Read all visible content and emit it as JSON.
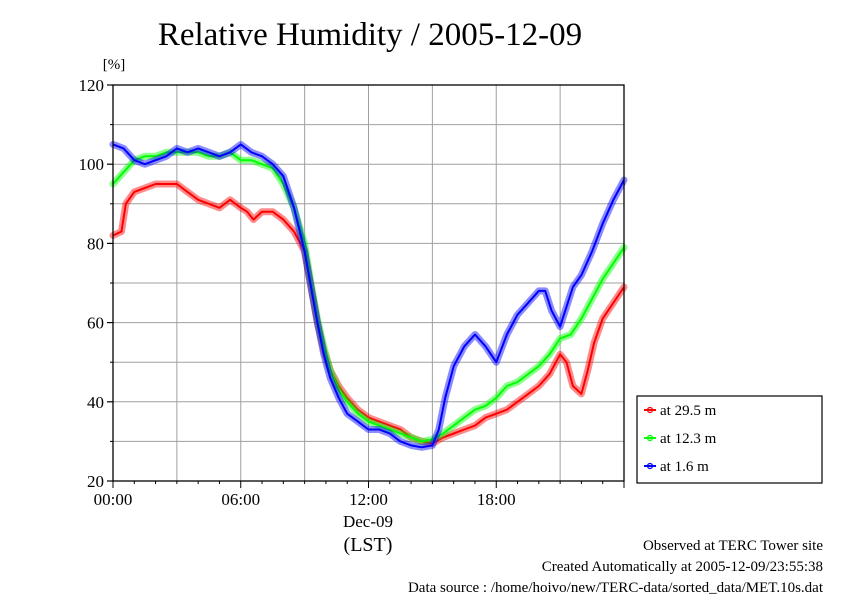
{
  "chart_data": {
    "type": "line",
    "title": "Relative Humidity / 2005-12-09",
    "ylabel": "[%]",
    "xlabel": "(LST)",
    "x_date_label": "Dec-09",
    "xlim_hours": [
      0,
      24
    ],
    "ylim": [
      20,
      120
    ],
    "y_ticks": [
      20,
      40,
      60,
      80,
      100,
      120
    ],
    "x_ticks": [
      {
        "hour": 0,
        "label": "00:00"
      },
      {
        "hour": 6,
        "label": "06:00"
      },
      {
        "hour": 12,
        "label": "12:00"
      },
      {
        "hour": 18,
        "label": "18:00"
      }
    ],
    "grid": true,
    "legend_position": "bottom-right-outside",
    "series": [
      {
        "name": "at 29.5 m",
        "color": "#ff0000",
        "points": [
          [
            0,
            82
          ],
          [
            0.4,
            83
          ],
          [
            0.6,
            90
          ],
          [
            1,
            93
          ],
          [
            1.5,
            94
          ],
          [
            2,
            95
          ],
          [
            2.5,
            95
          ],
          [
            3,
            95
          ],
          [
            3.5,
            93
          ],
          [
            4,
            91
          ],
          [
            4.5,
            90
          ],
          [
            5,
            89
          ],
          [
            5.5,
            91
          ],
          [
            6,
            89
          ],
          [
            6.3,
            88
          ],
          [
            6.6,
            86
          ],
          [
            7,
            88
          ],
          [
            7.5,
            88
          ],
          [
            8,
            86
          ],
          [
            8.5,
            83
          ],
          [
            9,
            78
          ],
          [
            9.3,
            69
          ],
          [
            9.6,
            60
          ],
          [
            9.9,
            53
          ],
          [
            10.2,
            48
          ],
          [
            10.6,
            44
          ],
          [
            11,
            41
          ],
          [
            11.5,
            38
          ],
          [
            12,
            36
          ],
          [
            12.5,
            35
          ],
          [
            13,
            34
          ],
          [
            13.5,
            33
          ],
          [
            14,
            31
          ],
          [
            14.5,
            30
          ],
          [
            15,
            29.5
          ],
          [
            15.5,
            31
          ],
          [
            16,
            32
          ],
          [
            16.5,
            33
          ],
          [
            17,
            34
          ],
          [
            17.5,
            36
          ],
          [
            18,
            37
          ],
          [
            18.5,
            38
          ],
          [
            19,
            40
          ],
          [
            19.5,
            42
          ],
          [
            20,
            44
          ],
          [
            20.5,
            47
          ],
          [
            21,
            52
          ],
          [
            21.3,
            50
          ],
          [
            21.6,
            44
          ],
          [
            22,
            42
          ],
          [
            22.3,
            48
          ],
          [
            22.6,
            55
          ],
          [
            23,
            61
          ],
          [
            23.5,
            65
          ],
          [
            24,
            69
          ]
        ]
      },
      {
        "name": "at 12.3 m",
        "color": "#00ff00",
        "points": [
          [
            0,
            95
          ],
          [
            0.5,
            98
          ],
          [
            1,
            101
          ],
          [
            1.5,
            102
          ],
          [
            2,
            102
          ],
          [
            2.5,
            103
          ],
          [
            3,
            103
          ],
          [
            3.5,
            103
          ],
          [
            4,
            103
          ],
          [
            4.5,
            102
          ],
          [
            5,
            102
          ],
          [
            5.5,
            103
          ],
          [
            6,
            101
          ],
          [
            6.5,
            101
          ],
          [
            7,
            100
          ],
          [
            7.5,
            99
          ],
          [
            8,
            95
          ],
          [
            8.5,
            89
          ],
          [
            9,
            80
          ],
          [
            9.3,
            70
          ],
          [
            9.6,
            61
          ],
          [
            9.9,
            54
          ],
          [
            10.2,
            48
          ],
          [
            10.6,
            43
          ],
          [
            11,
            40
          ],
          [
            11.5,
            37
          ],
          [
            12,
            35
          ],
          [
            12.5,
            34
          ],
          [
            13,
            33
          ],
          [
            13.5,
            32
          ],
          [
            14,
            31
          ],
          [
            14.5,
            30
          ],
          [
            15,
            30.5
          ],
          [
            15.5,
            32
          ],
          [
            16,
            34
          ],
          [
            16.5,
            36
          ],
          [
            17,
            38
          ],
          [
            17.5,
            39
          ],
          [
            18,
            41
          ],
          [
            18.5,
            44
          ],
          [
            19,
            45
          ],
          [
            19.5,
            47
          ],
          [
            20,
            49
          ],
          [
            20.5,
            52
          ],
          [
            21,
            56
          ],
          [
            21.5,
            57
          ],
          [
            22,
            61
          ],
          [
            22.5,
            66
          ],
          [
            23,
            71
          ],
          [
            23.5,
            75
          ],
          [
            24,
            79
          ]
        ]
      },
      {
        "name": "at 1.6 m",
        "color": "#0000ff",
        "points": [
          [
            0,
            105
          ],
          [
            0.5,
            104
          ],
          [
            1,
            101
          ],
          [
            1.5,
            100
          ],
          [
            2,
            101
          ],
          [
            2.5,
            102
          ],
          [
            3,
            104
          ],
          [
            3.5,
            103
          ],
          [
            4,
            104
          ],
          [
            4.5,
            103
          ],
          [
            5,
            102
          ],
          [
            5.5,
            103
          ],
          [
            6,
            105
          ],
          [
            6.5,
            103
          ],
          [
            7,
            102
          ],
          [
            7.5,
            100
          ],
          [
            8,
            97
          ],
          [
            8.5,
            89
          ],
          [
            9,
            78
          ],
          [
            9.3,
            69
          ],
          [
            9.6,
            60
          ],
          [
            9.9,
            52
          ],
          [
            10.2,
            46
          ],
          [
            10.6,
            41
          ],
          [
            11,
            37
          ],
          [
            11.5,
            35
          ],
          [
            12,
            33
          ],
          [
            12.5,
            33
          ],
          [
            13,
            32
          ],
          [
            13.5,
            30
          ],
          [
            14,
            29
          ],
          [
            14.5,
            28.5
          ],
          [
            15,
            29
          ],
          [
            15.3,
            33
          ],
          [
            15.6,
            41
          ],
          [
            16,
            49
          ],
          [
            16.5,
            54
          ],
          [
            17,
            57
          ],
          [
            17.5,
            54
          ],
          [
            18,
            50
          ],
          [
            18.5,
            57
          ],
          [
            19,
            62
          ],
          [
            19.5,
            65
          ],
          [
            20,
            68
          ],
          [
            20.3,
            68
          ],
          [
            20.6,
            63
          ],
          [
            21,
            59
          ],
          [
            21.3,
            64
          ],
          [
            21.6,
            69
          ],
          [
            22,
            72
          ],
          [
            22.5,
            78
          ],
          [
            23,
            85
          ],
          [
            23.5,
            91
          ],
          [
            24,
            96
          ]
        ]
      }
    ]
  },
  "footer": {
    "line1": "Observed at TERC Tower site",
    "line2": "Created Automatically at 2005-12-09/23:55:38",
    "line3": "Data source : /home/hoivo/new/TERC-data/sorted_data/MET.10s.dat"
  }
}
